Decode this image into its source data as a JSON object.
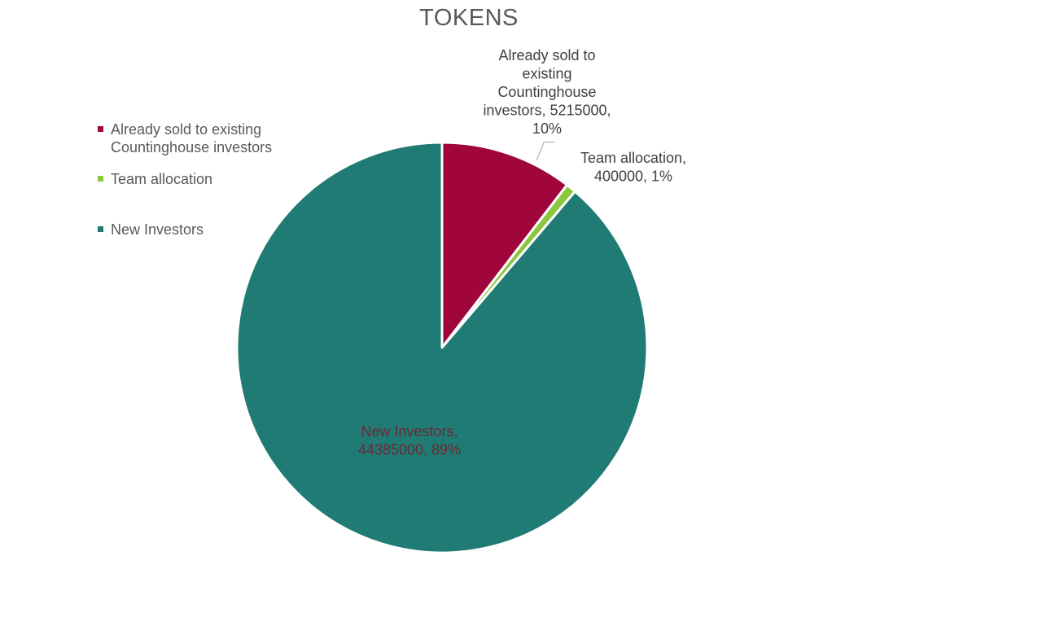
{
  "chart_data": {
    "type": "pie",
    "title": "TOKENS",
    "slices": [
      {
        "name": "Already sold to existing Countinghouse investors",
        "value": 5215000,
        "percent": "10%",
        "color": "#A0053C",
        "label_lines": [
          "Already sold to",
          "existing",
          "Countinghouse",
          "investors, 5215000,",
          "10%"
        ]
      },
      {
        "name": "Team allocation",
        "value": 400000,
        "percent": "1%",
        "color": "#8DC63F",
        "label_lines": [
          "Team allocation,",
          "400000, 1%"
        ]
      },
      {
        "name": "New Investors",
        "value": 44385000,
        "percent": "89%",
        "color": "#1F7B73",
        "label_lines": [
          "New Investors,",
          "44385000, 89%"
        ]
      }
    ],
    "legend_position": "left"
  }
}
